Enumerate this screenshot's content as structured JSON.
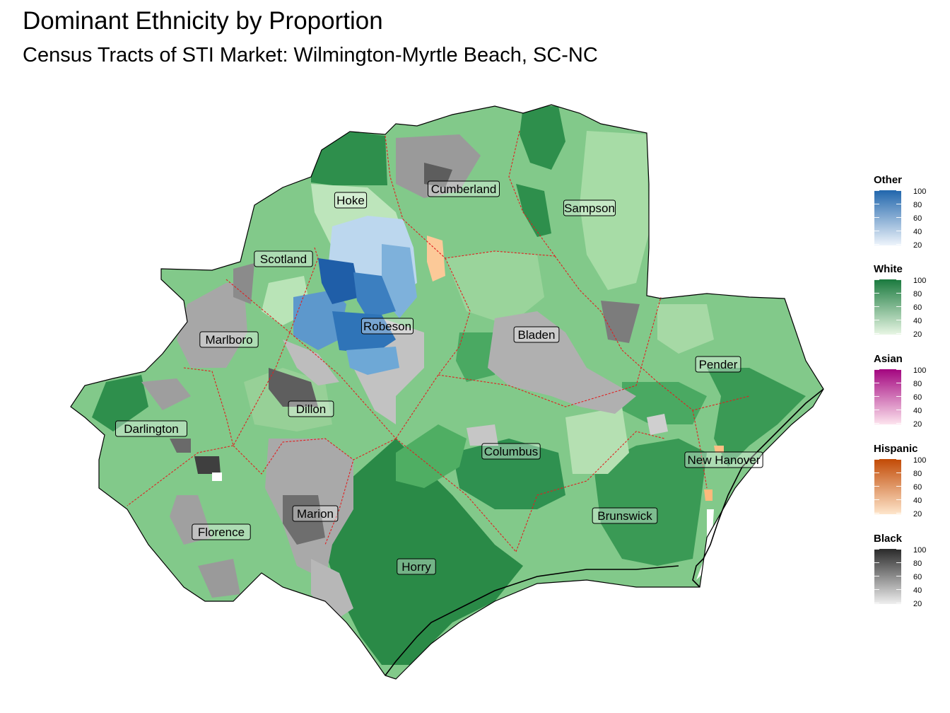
{
  "title": "Dominant Ethnicity by Proportion",
  "subtitle": "Census Tracts of STI Market: Wilmington-Myrtle Beach, SC-NC",
  "counties": [
    "Hoke",
    "Cumberland",
    "Sampson",
    "Scotland",
    "Robeson",
    "Marlboro",
    "Bladen",
    "Pender",
    "Dillon",
    "Darlington",
    "Columbus",
    "New Hanover",
    "Marion",
    "Brunswick",
    "Florence",
    "Horry"
  ],
  "legend": [
    {
      "title": "Other",
      "ticks": [
        "100",
        "80",
        "60",
        "40",
        "20"
      ],
      "colors": [
        "#eef4fb",
        "#2166ac"
      ]
    },
    {
      "title": "White",
      "ticks": [
        "100",
        "80",
        "60",
        "40",
        "20"
      ],
      "colors": [
        "#e8f6e4",
        "#1a7a3e"
      ]
    },
    {
      "title": "Asian",
      "ticks": [
        "100",
        "80",
        "60",
        "40",
        "20"
      ],
      "colors": [
        "#fde4ee",
        "#a3057f"
      ]
    },
    {
      "title": "Hispanic",
      "ticks": [
        "100",
        "80",
        "60",
        "40",
        "20"
      ],
      "colors": [
        "#fee6cc",
        "#c24a05"
      ]
    },
    {
      "title": "Black",
      "ticks": [
        "100",
        "80",
        "60",
        "40",
        "20"
      ],
      "colors": [
        "#efefef",
        "#2a2a2a"
      ]
    }
  ]
}
